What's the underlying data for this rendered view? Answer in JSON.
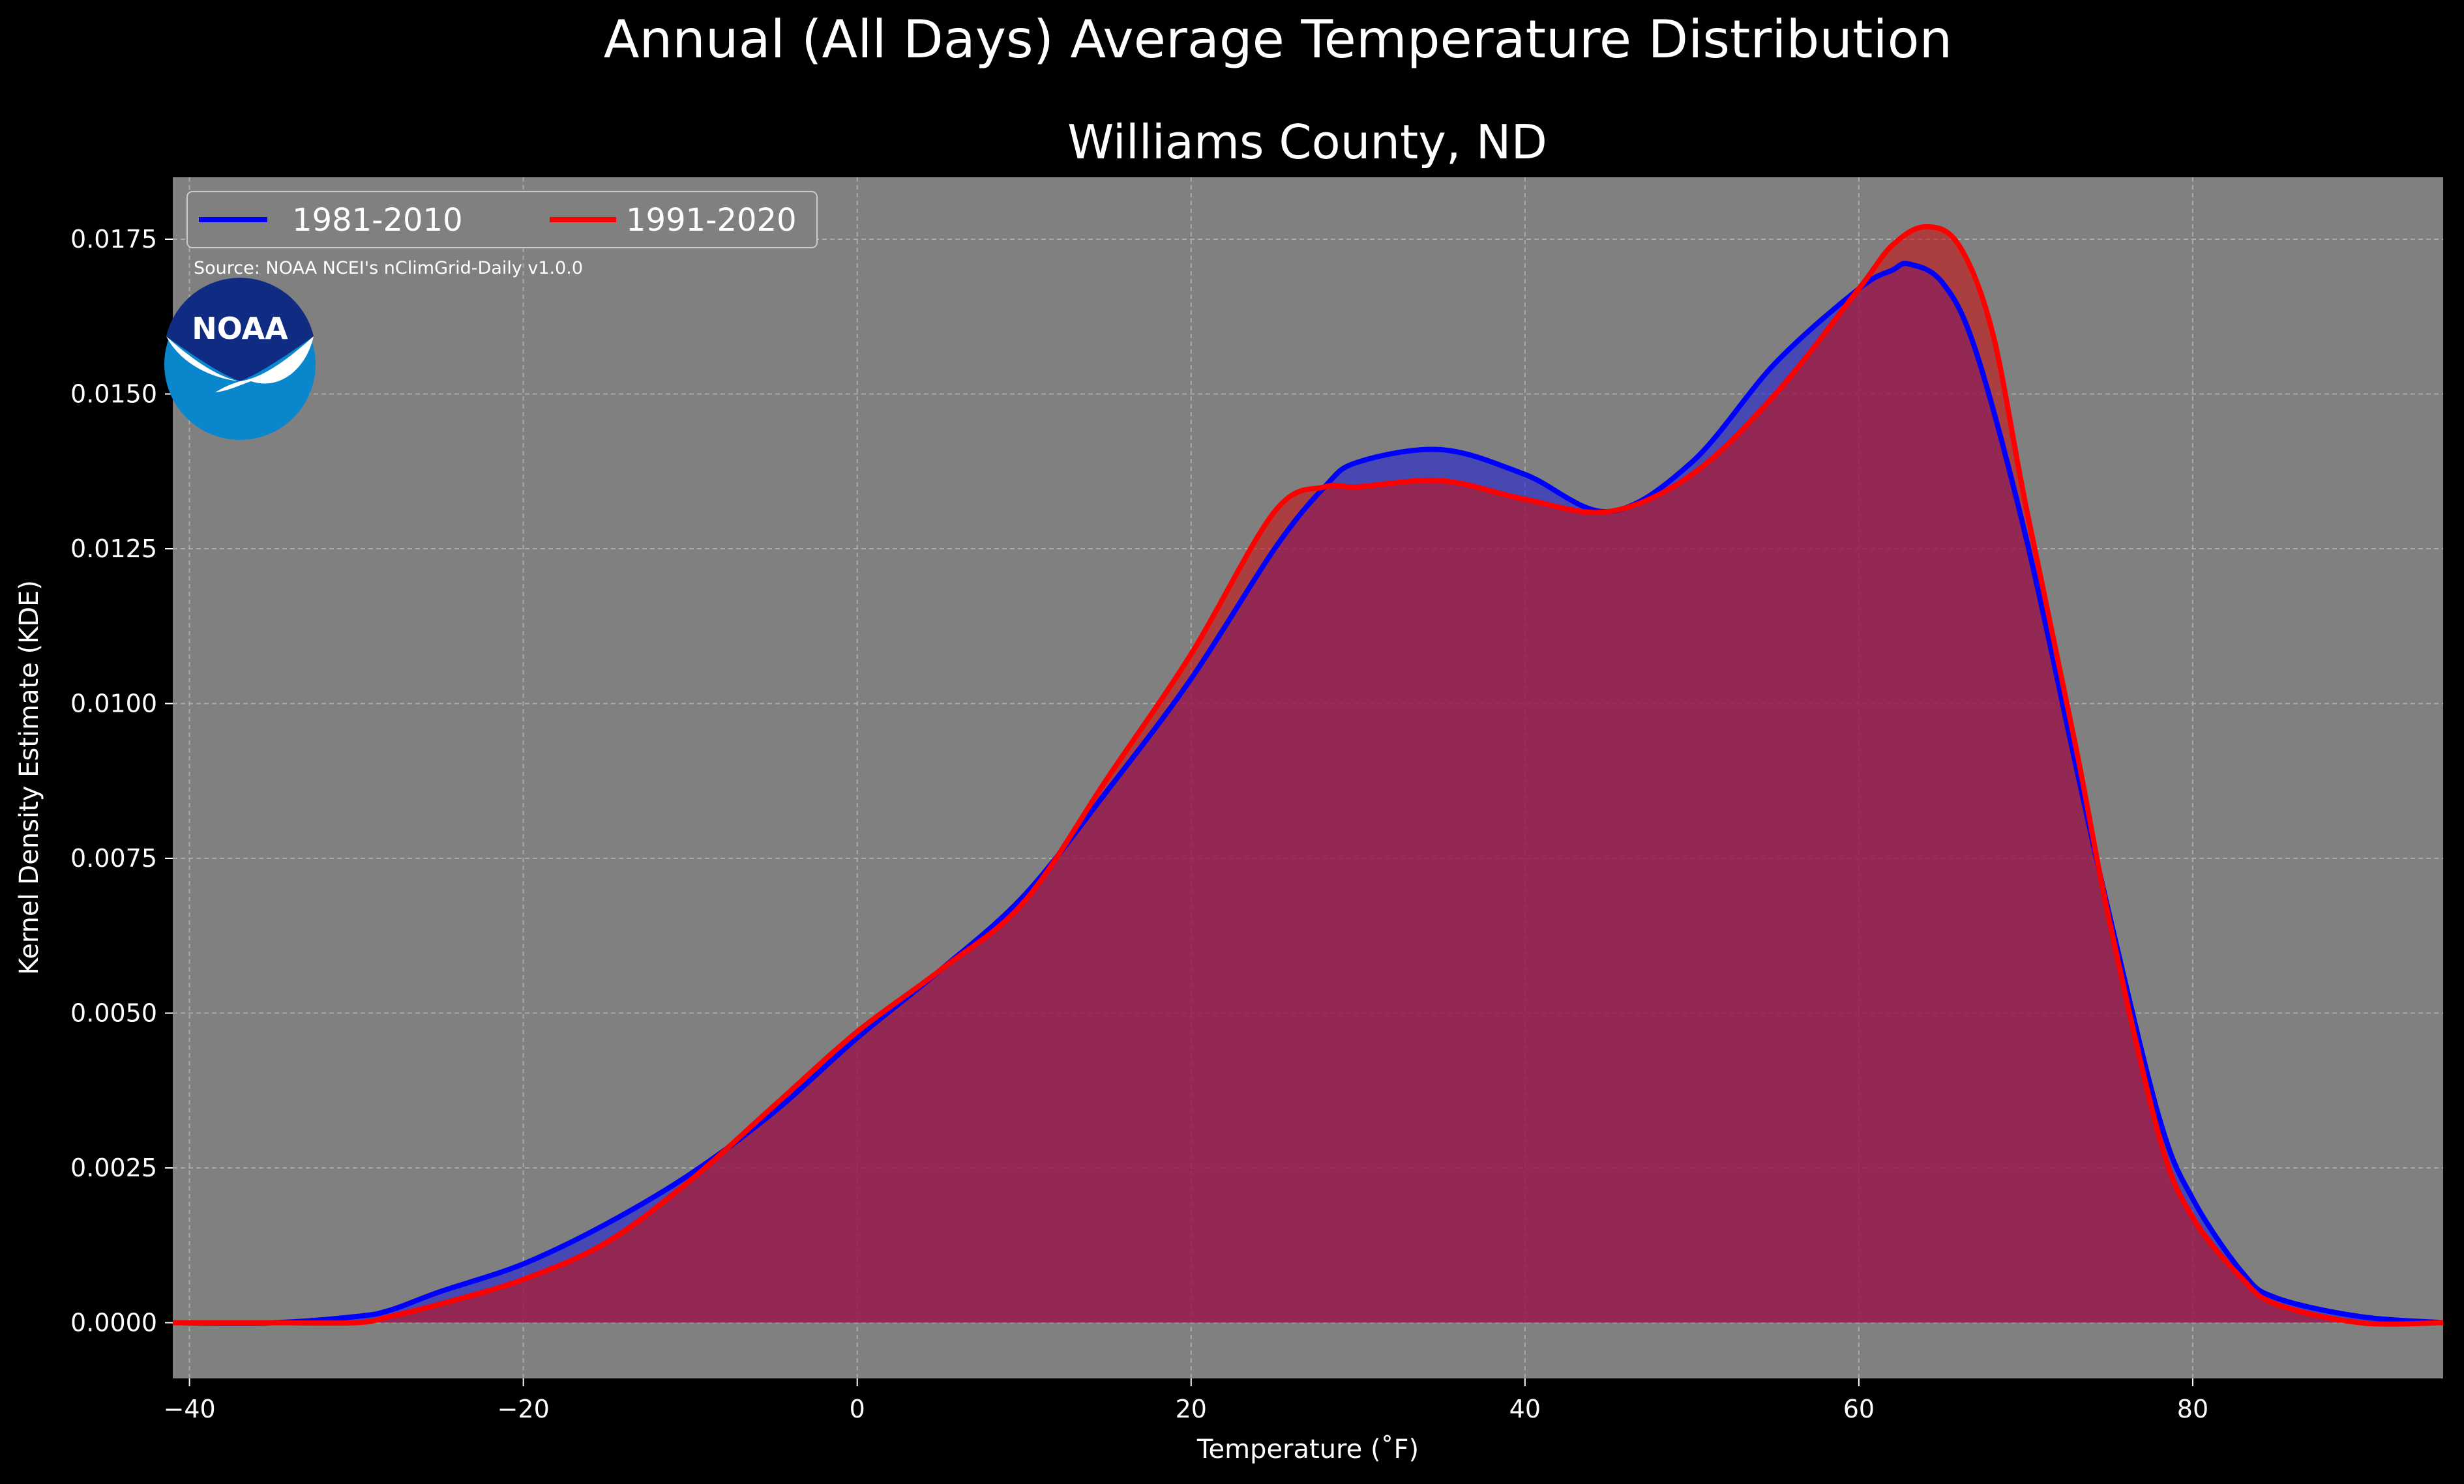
{
  "chart_data": {
    "type": "area",
    "suptitle": "Annual (All Days) Average Temperature Distribution",
    "title": "Williams County, ND",
    "xlabel": "Temperature ($^\\circ$F)",
    "xlabel_display": "Temperature (˚F)",
    "ylabel": "Kernel Density Estimate (KDE)",
    "xlim": [
      -41,
      95
    ],
    "ylim": [
      -0.0009,
      0.0185
    ],
    "xticks": [
      -40,
      -20,
      0,
      20,
      40,
      60,
      80
    ],
    "xtick_labels": [
      "−40",
      "−20",
      "0",
      "20",
      "40",
      "60",
      "80"
    ],
    "yticks": [
      0.0,
      0.0025,
      0.005,
      0.0075,
      0.01,
      0.0125,
      0.015,
      0.0175
    ],
    "ytick_labels": [
      "0.0000",
      "0.0025",
      "0.0050",
      "0.0075",
      "0.0100",
      "0.0125",
      "0.0150",
      "0.0175"
    ],
    "grid": true,
    "legend_position": "upper-left",
    "annotation": "Source: NOAA NCEI's nClimGrid-Daily v1.0.0",
    "logo_text": "NOAA",
    "background_color": "#000000",
    "plot_background_color": "#808080",
    "series": [
      {
        "name": "1981-2010",
        "color": "#0000ff",
        "x": [
          -41,
          -35,
          -30,
          -28,
          -25,
          -20,
          -15,
          -10,
          -5,
          0,
          5,
          10,
          15,
          20,
          25,
          28,
          30,
          35,
          40,
          45,
          50,
          55,
          60,
          62,
          63,
          65,
          67,
          70,
          73,
          75,
          78,
          80,
          83,
          85,
          90,
          95
        ],
        "y": [
          0.0,
          0.0,
          0.0001,
          0.0002,
          0.0005,
          0.00095,
          0.0016,
          0.0024,
          0.0034,
          0.0046,
          0.0057,
          0.0069,
          0.0086,
          0.0104,
          0.0125,
          0.0135,
          0.0139,
          0.0141,
          0.0137,
          0.0131,
          0.0139,
          0.0155,
          0.0167,
          0.017,
          0.0171,
          0.0168,
          0.0157,
          0.0127,
          0.009,
          0.0066,
          0.0033,
          0.002,
          0.0008,
          0.0004,
          0.0001,
          0.0
        ]
      },
      {
        "name": "1991-2020",
        "color": "#ff0000",
        "x": [
          -41,
          -35,
          -30,
          -28,
          -25,
          -20,
          -15,
          -10,
          -5,
          0,
          5,
          10,
          15,
          20,
          25,
          28,
          30,
          35,
          40,
          45,
          50,
          55,
          60,
          62,
          64,
          66,
          68,
          70,
          73,
          75,
          78,
          80,
          83,
          85,
          90,
          95
        ],
        "y": [
          0.0,
          0.0,
          0.0,
          0.0001,
          0.0003,
          0.0007,
          0.0013,
          0.0023,
          0.0035,
          0.0047,
          0.0057,
          0.0068,
          0.0088,
          0.0108,
          0.0131,
          0.0135,
          0.0135,
          0.0136,
          0.0133,
          0.0131,
          0.0137,
          0.015,
          0.0167,
          0.0174,
          0.0177,
          0.0174,
          0.016,
          0.0132,
          0.0093,
          0.0065,
          0.003,
          0.0017,
          0.0007,
          0.0003,
          0.0,
          0.0
        ]
      }
    ]
  }
}
